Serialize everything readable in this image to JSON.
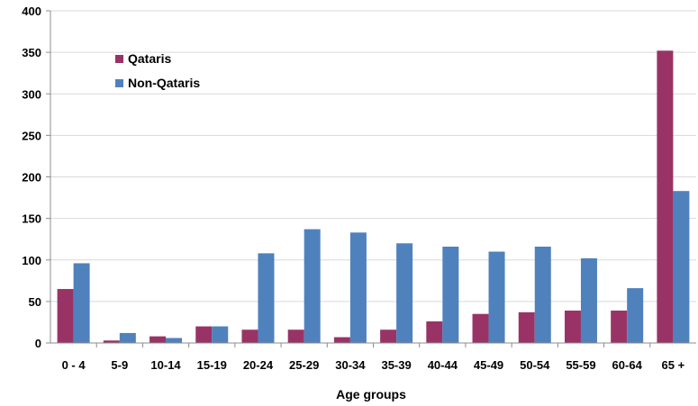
{
  "chart_data": {
    "type": "bar",
    "title": "",
    "xlabel": "Age groups",
    "ylabel": "",
    "ylim": [
      0,
      400
    ],
    "yticks": [
      "0",
      "50",
      "100",
      "150",
      "200",
      "250",
      "300",
      "350",
      "400"
    ],
    "grid": true,
    "legend_position": "top-left",
    "categories": [
      "0 - 4",
      "5-9",
      "10-14",
      "15-19",
      "20-24",
      "25-29",
      "30-34",
      "35-39",
      "40-44",
      "45-49",
      "50-54",
      "55-59",
      "60-64",
      "65 +"
    ],
    "series": [
      {
        "name": "Qataris",
        "color": "#993366",
        "values": [
          65,
          3,
          8,
          20,
          16,
          16,
          7,
          16,
          26,
          35,
          37,
          39,
          39,
          352
        ]
      },
      {
        "name": "Non-Qataris",
        "color": "#4f81bd",
        "values": [
          96,
          12,
          6,
          20,
          108,
          137,
          133,
          120,
          116,
          110,
          116,
          102,
          66,
          183
        ]
      }
    ]
  }
}
